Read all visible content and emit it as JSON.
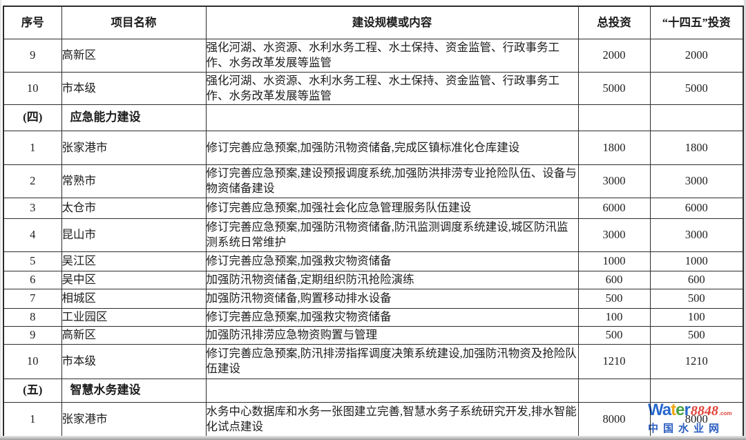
{
  "table": {
    "headers": [
      "序号",
      "项目名称",
      "建设规模或内容",
      "总投资",
      "“十四五”投资"
    ],
    "rows": [
      {
        "no": "9",
        "name": "高新区",
        "content": "强化河湖、水资源、水利水务工程、水土保持、资金监管、行政事务工作、水务改革发展等监管",
        "total": "2000",
        "plan": "2000",
        "section": false
      },
      {
        "no": "10",
        "name": "市本级",
        "content": "强化河湖、水资源、水利水务工程、水土保持、资金监管、行政事务工作、水务改革发展等监管",
        "total": "5000",
        "plan": "5000",
        "section": false
      },
      {
        "no": "(四)",
        "name": "应急能力建设",
        "content": "",
        "total": "",
        "plan": "",
        "section": true
      },
      {
        "no": "1",
        "name": "张家港市",
        "content": "修订完善应急预案,加强防汛物资储备,完成区镇标准化仓库建设",
        "total": "1800",
        "plan": "1800",
        "section": false
      },
      {
        "no": "2",
        "name": "常熟市",
        "content": "修订完善应急预案,建设预报调度系统,加强防洪排涝专业抢险队伍、设备与物资储备建设",
        "total": "3000",
        "plan": "3000",
        "section": false
      },
      {
        "no": "3",
        "name": "太仓市",
        "content": "修订完善应急预案,加强社会化应急管理服务队伍建设",
        "total": "6000",
        "plan": "6000",
        "section": false
      },
      {
        "no": "4",
        "name": "昆山市",
        "content": "修订完善应急预案,加强防汛物资储备,防汛监测调度系统建设,城区防汛监测系统日常维护",
        "total": "3000",
        "plan": "3000",
        "section": false
      },
      {
        "no": "5",
        "name": "吴江区",
        "content": "修订完善应急预案,加强救灾物资储备",
        "total": "1000",
        "plan": "1000",
        "section": false
      },
      {
        "no": "6",
        "name": "吴中区",
        "content": "加强防汛物资储备,定期组织防汛抢险演练",
        "total": "600",
        "plan": "600",
        "section": false
      },
      {
        "no": "7",
        "name": "相城区",
        "content": "加强防汛物资储备,购置移动排水设备",
        "total": "500",
        "plan": "500",
        "section": false
      },
      {
        "no": "8",
        "name": "工业园区",
        "content": "修订完善应急预案,加强救灾物资储备",
        "total": "100",
        "plan": "100",
        "section": false
      },
      {
        "no": "9",
        "name": "高新区",
        "content": "加强防汛排涝应急物资购置与管理",
        "total": "500",
        "plan": "500",
        "section": false
      },
      {
        "no": "10",
        "name": "市本级",
        "content": "修订完善应急预案,防汛排涝指挥调度决策系统建设,加强防汛物资及抢险队伍建设",
        "total": "1210",
        "plan": "1210",
        "section": false
      },
      {
        "no": "(五)",
        "name": "智慧水务建设",
        "content": "",
        "total": "",
        "plan": "",
        "section": true
      },
      {
        "no": "1",
        "name": "张家港市",
        "content": "水务中心数据库和水务一张图建立完善,智慧水务子系统研究开发,排水智能化试点建设",
        "total": "8000",
        "plan": "8000",
        "section": false
      }
    ]
  },
  "watermark": {
    "word": "Water",
    "word_colors": [
      "#1f62cc",
      "#1f62cc",
      "#f2a30a",
      "#3d9e3d",
      "#1f62cc"
    ],
    "number": "8848",
    "number_color": "#e03a30",
    "tld": ".com",
    "tld_color": "#e03a30",
    "subtitle": "中国水业网",
    "subtitle_color": "#2257bf"
  }
}
